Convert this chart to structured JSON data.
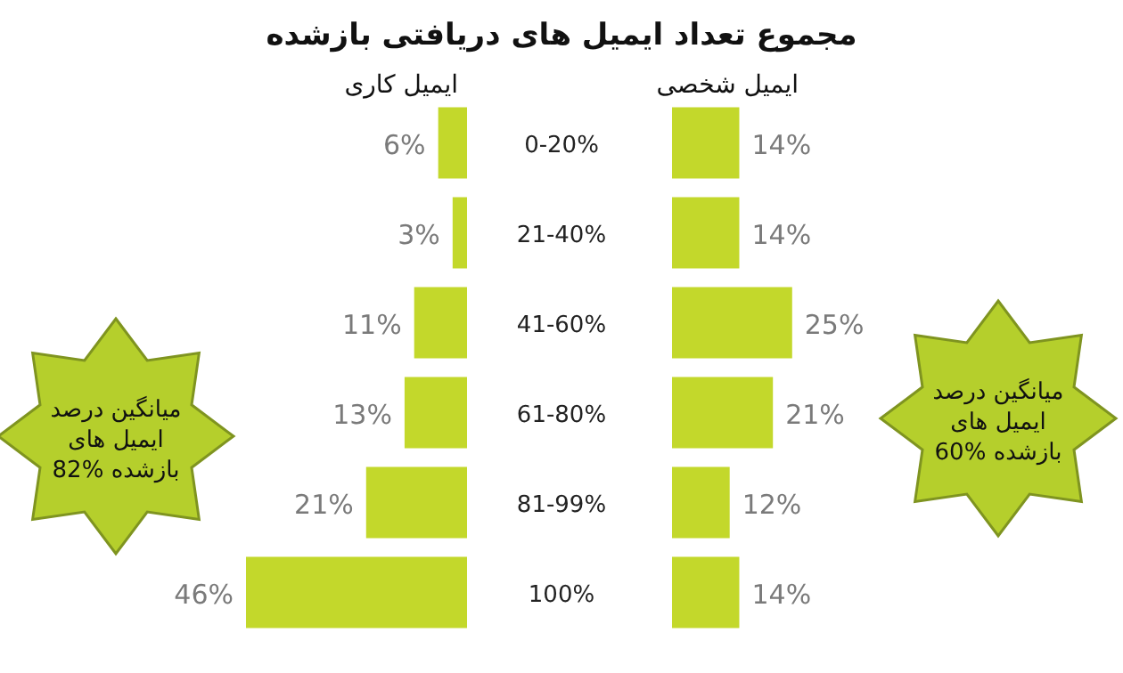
{
  "chart_data": [
    {
      "type": "bar",
      "orientation": "horizontal",
      "title": "مجموع تعداد ایمیل های دریافتی بازشده",
      "subtitle": "ایمیل کاری",
      "categories": [
        "0-20%",
        "21-40%",
        "41-60%",
        "61-80%",
        "81-99%",
        "100%"
      ],
      "values": [
        6,
        3,
        11,
        13,
        21,
        46
      ],
      "value_labels": [
        "6%",
        "3%",
        "11%",
        "13%",
        "21%",
        "46%"
      ],
      "color": "#c3d82b",
      "annotations": [
        "میانگین درصد ایمیل های بازشده 82%"
      ]
    },
    {
      "type": "bar",
      "orientation": "horizontal",
      "subtitle": "ایمیل شخصی",
      "values": [
        14,
        14,
        25,
        21,
        12,
        14
      ],
      "value_labels": [
        "14%",
        "14%",
        "25%",
        "21%",
        "12%",
        "14%"
      ],
      "color": "#c3d82b",
      "annotations": [
        "میانگین درصد ایمیل های بازشده 60%"
      ]
    }
  ]
}
